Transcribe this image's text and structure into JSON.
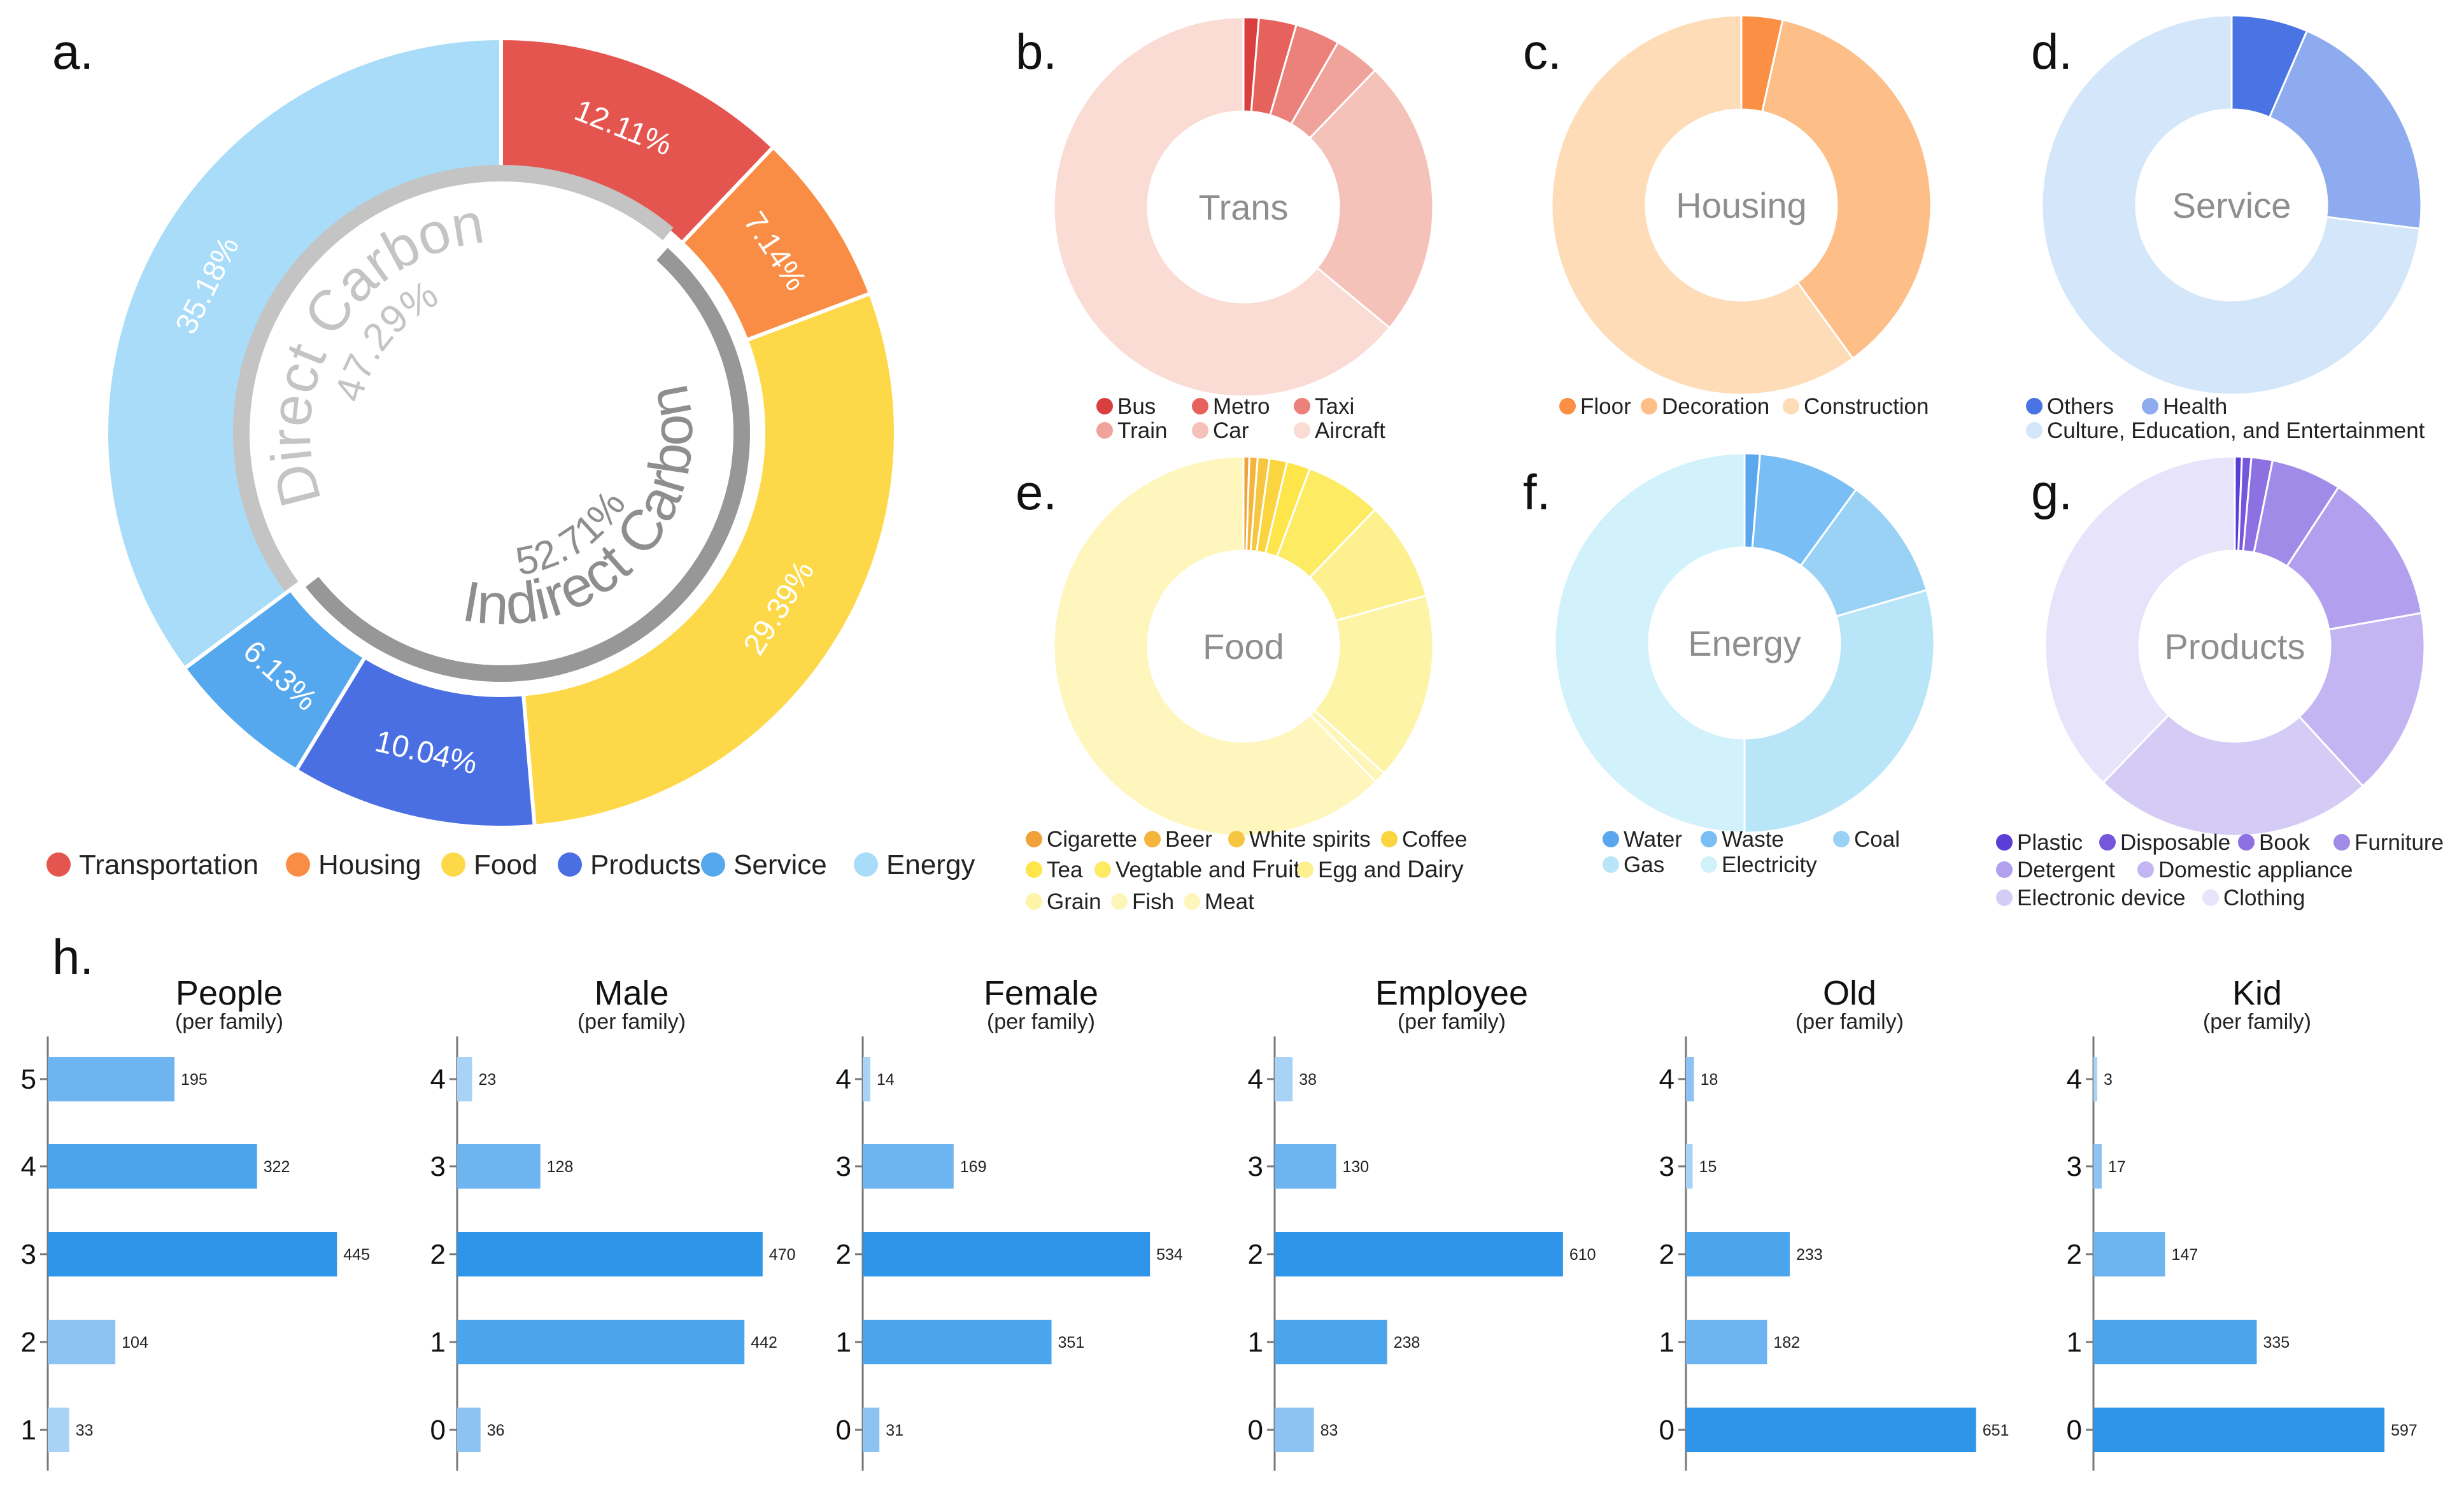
{
  "panels": {
    "a": "a.",
    "b": "b.",
    "c": "c.",
    "d": "d.",
    "e": "e.",
    "f": "f.",
    "g": "g.",
    "h": "h."
  },
  "chart_data": [
    {
      "id": "a",
      "type": "pie",
      "title": "",
      "categories": [
        "Transportation",
        "Housing",
        "Food",
        "Products",
        "Service",
        "Energy"
      ],
      "values": [
        12.11,
        7.14,
        29.39,
        10.04,
        6.13,
        35.18
      ],
      "labels": [
        "12.11%",
        "7.14%",
        "29.39%",
        "10.04%",
        "6.13%",
        "35.18%"
      ],
      "colors": [
        "#e5554f",
        "#f98d45",
        "#fdd94a",
        "#4a6fe3",
        "#56a8ee",
        "#a8dcf8"
      ],
      "inner_ring": [
        {
          "name": "Direct Carbon",
          "label": "47.29%",
          "value": 47.29,
          "color": "#c4c4c4"
        },
        {
          "name": "Indirect Carbon",
          "label": "52.71%",
          "value": 52.71,
          "color": "#979797"
        }
      ],
      "legend_position": "bottom"
    },
    {
      "id": "b",
      "type": "pie",
      "center": "Trans",
      "categories": [
        "Bus",
        "Metro",
        "Taxi",
        "Train",
        "Car",
        "Aircraft"
      ],
      "values": [
        1.3,
        3.2,
        3.8,
        3.9,
        23.8,
        64.0
      ],
      "colors": [
        "#d93f3f",
        "#e6625d",
        "#ec817b",
        "#f0a39b",
        "#f5c2ba",
        "#fadcd4"
      ],
      "legend_position": "bottom"
    },
    {
      "id": "c",
      "type": "pie",
      "center": "Housing",
      "categories": [
        "Floor",
        "Decoration",
        "Construction"
      ],
      "values": [
        3.5,
        36.5,
        60.0
      ],
      "colors": [
        "#fb8f43",
        "#fdbe88",
        "#fddcb7"
      ],
      "legend_position": "bottom"
    },
    {
      "id": "d",
      "type": "pie",
      "center": "Service",
      "categories": [
        "Others",
        "Health",
        "Culture, Education, and Entertainment"
      ],
      "values": [
        6.5,
        20.5,
        73.0
      ],
      "colors": [
        "#4a74e3",
        "#8dabee",
        "#d3e6fa"
      ],
      "legend_position": "bottom"
    },
    {
      "id": "e",
      "type": "pie",
      "center": "Food",
      "categories": [
        "Cigarette",
        "Beer",
        "White spirits",
        "Coffee",
        "Tea",
        "Vegtable and Fruit",
        "Egg and Dairy",
        "Grain",
        "Fish",
        "Meat"
      ],
      "category_display": [
        [
          "Cigarette"
        ],
        [
          "Beer"
        ],
        [
          "White spirits"
        ],
        [
          "Coffee"
        ],
        [
          "Tea"
        ],
        [
          "Vegtable and ",
          "Fruit"
        ],
        [
          "Egg and ",
          "Dairy"
        ],
        [
          "Grain"
        ],
        [
          "Fish"
        ],
        [
          "Meat"
        ]
      ],
      "values": [
        0.5,
        0.7,
        1.0,
        1.5,
        2.0,
        6.5,
        8.5,
        16.0,
        1.0,
        62.3
      ],
      "colors": [
        "#f0a13a",
        "#f5b43b",
        "#f7c640",
        "#fad53f",
        "#fde54a",
        "#fdeb63",
        "#fdf08f",
        "#fdf4a8",
        "#fef6b8",
        "#fef6bc"
      ],
      "legend_position": "bottom"
    },
    {
      "id": "f",
      "type": "pie",
      "center": "Energy",
      "categories": [
        "Water",
        "Waste",
        "Coal",
        "Gas",
        "Electricity"
      ],
      "values": [
        1.3,
        8.7,
        10.5,
        29.5,
        50.0
      ],
      "colors": [
        "#5aa7ee",
        "#79bef4",
        "#9ad2f6",
        "#b9e5f9",
        "#d1f2fb"
      ],
      "legend_position": "bottom"
    },
    {
      "id": "g",
      "type": "pie",
      "center": "Products",
      "categories": [
        "Plastic",
        "Disposable",
        "Book",
        "Furniture",
        "Detergent",
        "Domestic appliance",
        "Electronic device",
        "Clothing"
      ],
      "values": [
        0.6,
        0.8,
        1.8,
        6.0,
        13.0,
        16.0,
        24.0,
        37.8
      ],
      "colors": [
        "#5b3ed6",
        "#7556dc",
        "#8d70e2",
        "#a08ce8",
        "#b2a0ee",
        "#c3b5f2",
        "#d5ccf6",
        "#e7e3fa"
      ],
      "legend_position": "bottom"
    },
    {
      "id": "h1",
      "type": "bar",
      "orientation": "horizontal",
      "title": "People",
      "subtitle": "(per family)",
      "categories": [
        "5",
        "4",
        "3",
        "2",
        "1"
      ],
      "values": [
        195,
        322,
        445,
        104,
        33
      ],
      "xlim": [
        0,
        480
      ]
    },
    {
      "id": "h2",
      "type": "bar",
      "orientation": "horizontal",
      "title": "Male",
      "subtitle": "(per family)",
      "categories": [
        "4",
        "3",
        "2",
        "1",
        "0"
      ],
      "values": [
        23,
        128,
        470,
        442,
        36
      ],
      "xlim": [
        0,
        480
      ]
    },
    {
      "id": "h3",
      "type": "bar",
      "orientation": "horizontal",
      "title": "Female",
      "subtitle": "(per family)",
      "categories": [
        "4",
        "3",
        "2",
        "1",
        "0"
      ],
      "values": [
        14,
        169,
        534,
        351,
        31
      ],
      "xlim": [
        0,
        580
      ]
    },
    {
      "id": "h4",
      "type": "bar",
      "orientation": "horizontal",
      "title": "Employee",
      "subtitle": "(per family)",
      "categories": [
        "4",
        "3",
        "2",
        "1",
        "0"
      ],
      "values": [
        38,
        130,
        610,
        238,
        83
      ],
      "xlim": [
        0,
        660
      ]
    },
    {
      "id": "h5",
      "type": "bar",
      "orientation": "horizontal",
      "title": "Old",
      "subtitle": "(per family)",
      "categories": [
        "4",
        "3",
        "2",
        "1",
        "0"
      ],
      "values": [
        18,
        15,
        233,
        182,
        651
      ],
      "xlim": [
        0,
        700
      ]
    },
    {
      "id": "h6",
      "type": "bar",
      "orientation": "horizontal",
      "title": "Kid",
      "subtitle": "(per family)",
      "categories": [
        "4",
        "3",
        "2",
        "1",
        "0"
      ],
      "values": [
        3,
        17,
        147,
        335,
        597
      ],
      "xlim": [
        0,
        640
      ]
    }
  ],
  "bar_colors": {
    "max": "#2f95e8",
    "second": "#4ba5ec",
    "third": "#6db4f0",
    "fourth": "#8cc3f3",
    "fifth": "#a8d3f7"
  }
}
